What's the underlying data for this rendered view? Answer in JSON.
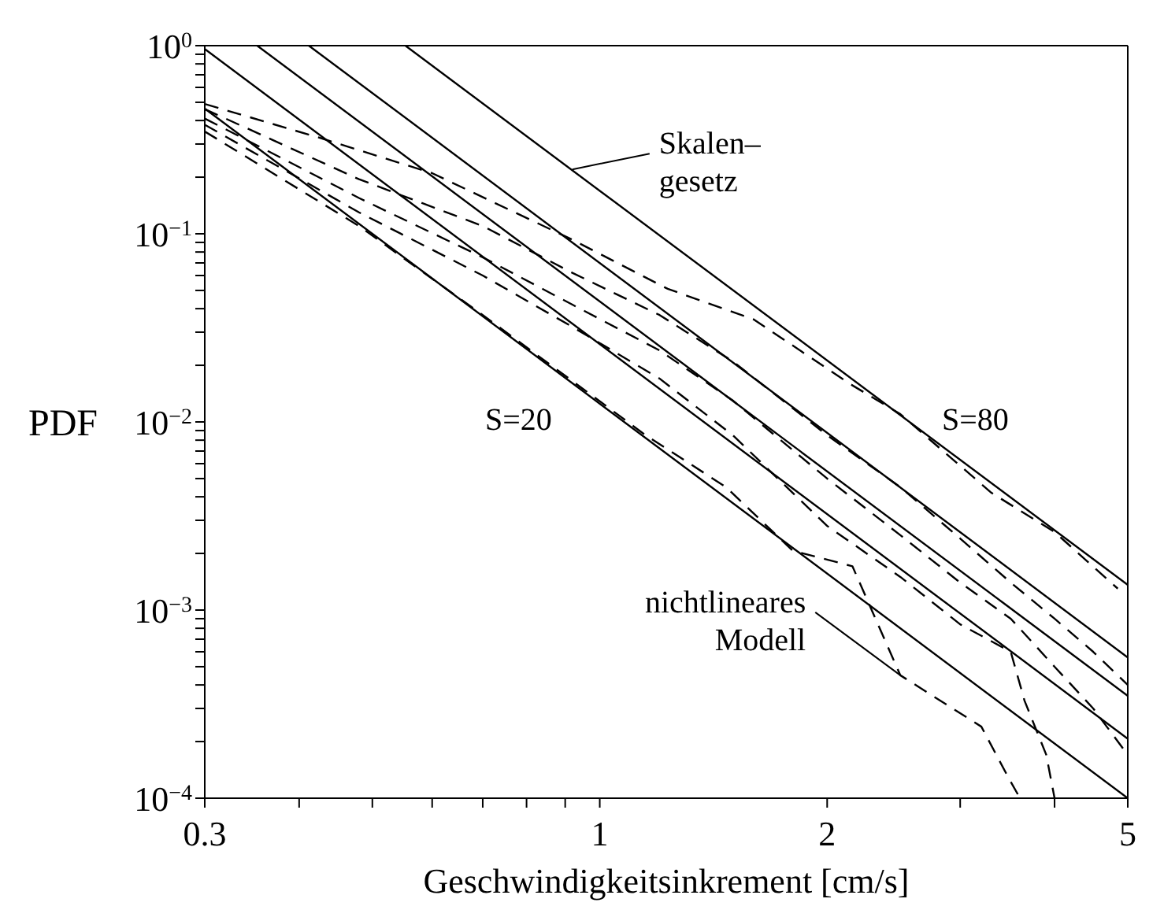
{
  "chart_data": {
    "type": "line",
    "xlabel": "Geschwindigkeitsinkrement [cm/s]",
    "ylabel": "PDF",
    "log": "xy",
    "xlim": [
      0.3,
      5
    ],
    "ylim": [
      0.0001,
      1
    ],
    "xticks": [
      0.3,
      {
        "value": 0.4,
        "label": null
      },
      {
        "value": 0.5,
        "label": null
      },
      {
        "value": 0.6,
        "label": null
      },
      {
        "value": 0.7,
        "label": null
      },
      {
        "value": 0.8,
        "label": null
      },
      {
        "value": 0.9,
        "label": null
      },
      1,
      2,
      {
        "value": 3,
        "label": null
      },
      {
        "value": 4,
        "label": null
      },
      5
    ],
    "yticks": [
      {
        "value": 0.0001,
        "label": "10$^{−4}$"
      },
      {
        "value": 0.0002,
        "label": null
      },
      {
        "value": 0.0003,
        "label": null
      },
      {
        "value": 0.0004,
        "label": null
      },
      {
        "value": 0.0005,
        "label": null
      },
      {
        "value": 0.0006,
        "label": null
      },
      {
        "value": 0.0007,
        "label": null
      },
      {
        "value": 0.0008,
        "label": null
      },
      {
        "value": 0.0009,
        "label": null
      },
      {
        "value": 0.001,
        "label": "10$^{−3}$"
      },
      {
        "value": 0.002,
        "label": null
      },
      {
        "value": 0.003,
        "label": null
      },
      {
        "value": 0.004,
        "label": null
      },
      {
        "value": 0.005,
        "label": null
      },
      {
        "value": 0.006,
        "label": null
      },
      {
        "value": 0.007,
        "label": null
      },
      {
        "value": 0.008,
        "label": null
      },
      {
        "value": 0.009,
        "label": null
      },
      {
        "value": 0.01,
        "label": "10$^{−2}$"
      },
      {
        "value": 0.02,
        "label": null
      },
      {
        "value": 0.03,
        "label": null
      },
      {
        "value": 0.04,
        "label": null
      },
      {
        "value": 0.05,
        "label": null
      },
      {
        "value": 0.06,
        "label": null
      },
      {
        "value": 0.07,
        "label": null
      },
      {
        "value": 0.08,
        "label": null
      },
      {
        "value": 0.09,
        "label": null
      },
      {
        "value": 0.1,
        "label": "10$^{−1}$"
      },
      {
        "value": 0.2,
        "label": null
      },
      {
        "value": 0.3,
        "label": null
      },
      {
        "value": 0.4,
        "label": null
      },
      {
        "value": 0.5,
        "label": null
      },
      {
        "value": 0.6,
        "label": null
      },
      {
        "value": 0.7,
        "label": null
      },
      {
        "value": 0.8,
        "label": null
      },
      {
        "value": 0.9,
        "label": null
      },
      {
        "value": 1,
        "label": "10$^{0}$"
      }
    ],
    "series": [
      {
        "color": "#000000",
        "line_style": "solid",
        "x": [
          0.553,
          5
        ],
        "values": [
          1,
          0.00136
        ]
      },
      {
        "color": "#000000",
        "line_style": "solid",
        "x": [
          0.412,
          5
        ],
        "values": [
          1,
          0.00056
        ]
      },
      {
        "color": "#000000",
        "line_style": "solid",
        "x": [
          0.352,
          5
        ],
        "values": [
          1,
          0.00035
        ]
      },
      {
        "color": "#000000",
        "line_style": "solid",
        "x": [
          0.3,
          5
        ],
        "values": [
          0.96,
          0.000207
        ]
      },
      {
        "color": "#000000",
        "line_style": "solid",
        "x": [
          0.3,
          5
        ],
        "values": [
          0.463,
          0.0001
        ]
      },
      {
        "color": "#000000",
        "line_style": "dashed",
        "x": [
          0.3,
          0.43,
          0.6,
          0.92,
          1.23,
          1.6,
          2.14,
          2.5,
          3.3,
          4,
          4.85
        ],
        "values": [
          0.49,
          0.32,
          0.21,
          0.093,
          0.051,
          0.035,
          0.016,
          0.011,
          0.0042,
          0.0026,
          0.0013
        ]
      },
      {
        "color": "#000000",
        "line_style": "dashed",
        "x": [
          0.3,
          0.48,
          0.7,
          0.92,
          1.2,
          1.5,
          2,
          2.5,
          3,
          3.5,
          4,
          4.5,
          5
        ],
        "values": [
          0.46,
          0.195,
          0.11,
          0.062,
          0.037,
          0.021,
          0.0085,
          0.0045,
          0.0024,
          0.0014,
          0.0009,
          0.0006,
          0.0004
        ]
      },
      {
        "color": "#000000",
        "line_style": "dashed",
        "x": [
          0.3,
          0.48,
          0.7,
          0.92,
          1.2,
          1.5,
          2,
          2.5,
          3,
          3.5,
          4,
          4.5,
          5
        ],
        "values": [
          0.41,
          0.155,
          0.075,
          0.042,
          0.024,
          0.013,
          0.005,
          0.0025,
          0.0014,
          0.0009,
          0.0005,
          0.0003,
          0.00017
        ]
      },
      {
        "color": "#000000",
        "line_style": "dashed",
        "x": [
          0.3,
          0.48,
          0.7,
          0.92,
          1.2,
          1.5,
          2,
          2.5,
          3,
          3.5,
          3.65,
          3.9,
          4
        ],
        "values": [
          0.38,
          0.13,
          0.06,
          0.032,
          0.017,
          0.0085,
          0.0028,
          0.0015,
          0.00084,
          0.0006,
          0.00033,
          0.00017,
          0.0001
        ]
      },
      {
        "color": "#000000",
        "line_style": "dashed",
        "x": [
          0.3,
          0.48,
          0.7,
          0.95,
          1.15,
          1.47,
          1.8,
          2.16,
          2.5,
          3.2,
          3.47,
          3.6
        ],
        "values": [
          0.35,
          0.11,
          0.037,
          0.015,
          0.0085,
          0.0045,
          0.00207,
          0.00171,
          0.00045,
          0.00024,
          0.00013,
          0.0001
        ]
      }
    ],
    "annotations": [
      {
        "text": "Skalen–\ngesetz",
        "x": 0.92,
        "y": 0.22
      },
      "S=20",
      "S=80",
      {
        "text": "nichtlineares\nModell",
        "x": 2.5,
        "y": 0.00045
      }
    ]
  }
}
